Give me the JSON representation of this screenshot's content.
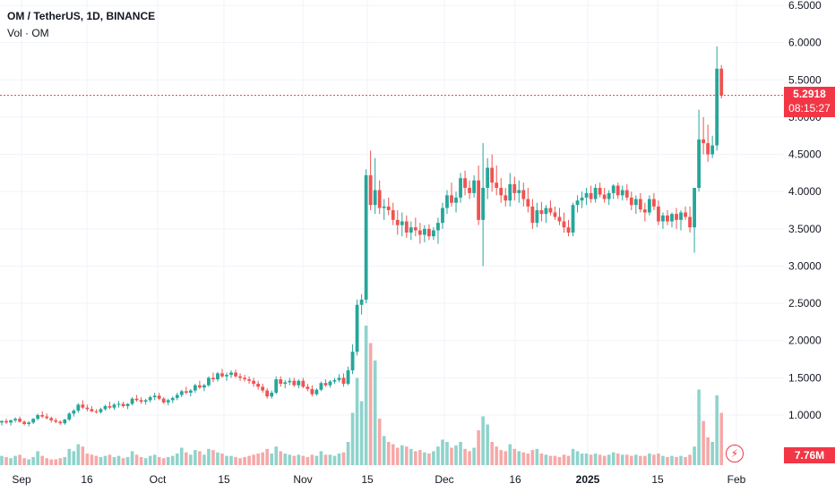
{
  "header": {
    "symbol": "OM / TetherUS, 1D, BINANCE",
    "volume_label": "Vol · OM"
  },
  "last_price": {
    "value": "5.2918",
    "countdown": "08:15:27"
  },
  "volume_badge": "7.76M",
  "colors": {
    "up": "#26a69a",
    "down": "#ef5350",
    "up_vol": "#8fd3cc",
    "down_vol": "#f5a9a8",
    "accent": "#f23645"
  },
  "icons": {
    "alert": "lightning-icon"
  },
  "chart_data": {
    "type": "candlestick",
    "y_axis": {
      "ticks": [
        "6.5000",
        "6.0000",
        "5.5000",
        "5.0000",
        "4.5000",
        "4.0000",
        "3.5000",
        "3.0000",
        "2.5000",
        "2.0000",
        "1.5000",
        "1.0000"
      ],
      "ylim": [
        0.5,
        6.5
      ]
    },
    "x_axis": {
      "ticks": [
        "Sep",
        "16",
        "Oct",
        "15",
        "Nov",
        "15",
        "Dec",
        "16",
        "2025",
        "15",
        "Feb"
      ]
    },
    "current_price_line": 5.2918,
    "candles": [
      [
        0.9,
        0.93,
        0.86,
        0.92
      ],
      [
        0.92,
        0.95,
        0.88,
        0.9
      ],
      [
        0.9,
        0.94,
        0.86,
        0.93
      ],
      [
        0.93,
        0.97,
        0.9,
        0.95
      ],
      [
        0.95,
        0.98,
        0.9,
        0.91
      ],
      [
        0.91,
        0.93,
        0.86,
        0.88
      ],
      [
        0.88,
        0.92,
        0.85,
        0.9
      ],
      [
        0.9,
        0.96,
        0.88,
        0.95
      ],
      [
        0.95,
        1.02,
        0.93,
        1.0
      ],
      [
        1.0,
        1.05,
        0.96,
        0.98
      ],
      [
        0.98,
        1.02,
        0.94,
        0.96
      ],
      [
        0.96,
        0.98,
        0.9,
        0.93
      ],
      [
        0.93,
        0.96,
        0.89,
        0.91
      ],
      [
        0.91,
        0.93,
        0.87,
        0.89
      ],
      [
        0.89,
        0.95,
        0.87,
        0.94
      ],
      [
        0.94,
        1.04,
        0.92,
        1.02
      ],
      [
        1.02,
        1.08,
        0.98,
        1.06
      ],
      [
        1.06,
        1.16,
        1.03,
        1.14
      ],
      [
        1.14,
        1.2,
        1.08,
        1.1
      ],
      [
        1.1,
        1.14,
        1.05,
        1.08
      ],
      [
        1.08,
        1.12,
        1.04,
        1.05
      ],
      [
        1.05,
        1.08,
        1.02,
        1.04
      ],
      [
        1.04,
        1.1,
        1.02,
        1.08
      ],
      [
        1.08,
        1.14,
        1.06,
        1.12
      ],
      [
        1.12,
        1.18,
        1.08,
        1.1
      ],
      [
        1.1,
        1.16,
        1.07,
        1.14
      ],
      [
        1.14,
        1.19,
        1.1,
        1.15
      ],
      [
        1.15,
        1.18,
        1.1,
        1.12
      ],
      [
        1.12,
        1.16,
        1.08,
        1.15
      ],
      [
        1.15,
        1.24,
        1.13,
        1.22
      ],
      [
        1.22,
        1.27,
        1.18,
        1.2
      ],
      [
        1.2,
        1.24,
        1.15,
        1.18
      ],
      [
        1.18,
        1.22,
        1.14,
        1.2
      ],
      [
        1.2,
        1.26,
        1.17,
        1.24
      ],
      [
        1.24,
        1.3,
        1.2,
        1.26
      ],
      [
        1.26,
        1.3,
        1.2,
        1.22
      ],
      [
        1.22,
        1.24,
        1.15,
        1.17
      ],
      [
        1.17,
        1.22,
        1.13,
        1.2
      ],
      [
        1.2,
        1.25,
        1.16,
        1.23
      ],
      [
        1.23,
        1.3,
        1.2,
        1.27
      ],
      [
        1.27,
        1.34,
        1.24,
        1.32
      ],
      [
        1.32,
        1.38,
        1.28,
        1.3
      ],
      [
        1.3,
        1.35,
        1.25,
        1.33
      ],
      [
        1.33,
        1.42,
        1.3,
        1.4
      ],
      [
        1.4,
        1.46,
        1.35,
        1.37
      ],
      [
        1.37,
        1.42,
        1.32,
        1.4
      ],
      [
        1.4,
        1.52,
        1.38,
        1.5
      ],
      [
        1.5,
        1.57,
        1.44,
        1.48
      ],
      [
        1.48,
        1.58,
        1.45,
        1.56
      ],
      [
        1.56,
        1.62,
        1.5,
        1.52
      ],
      [
        1.52,
        1.57,
        1.46,
        1.54
      ],
      [
        1.54,
        1.6,
        1.5,
        1.57
      ],
      [
        1.57,
        1.61,
        1.5,
        1.52
      ],
      [
        1.52,
        1.56,
        1.46,
        1.5
      ],
      [
        1.5,
        1.54,
        1.45,
        1.48
      ],
      [
        1.48,
        1.52,
        1.42,
        1.46
      ],
      [
        1.46,
        1.5,
        1.38,
        1.42
      ],
      [
        1.42,
        1.46,
        1.34,
        1.38
      ],
      [
        1.38,
        1.42,
        1.3,
        1.33
      ],
      [
        1.33,
        1.36,
        1.22,
        1.25
      ],
      [
        1.25,
        1.33,
        1.22,
        1.3
      ],
      [
        1.3,
        1.52,
        1.28,
        1.48
      ],
      [
        1.48,
        1.52,
        1.38,
        1.42
      ],
      [
        1.42,
        1.47,
        1.36,
        1.44
      ],
      [
        1.44,
        1.5,
        1.4,
        1.46
      ],
      [
        1.46,
        1.5,
        1.38,
        1.4
      ],
      [
        1.4,
        1.48,
        1.36,
        1.46
      ],
      [
        1.46,
        1.5,
        1.36,
        1.38
      ],
      [
        1.38,
        1.42,
        1.32,
        1.35
      ],
      [
        1.35,
        1.4,
        1.25,
        1.28
      ],
      [
        1.28,
        1.36,
        1.26,
        1.34
      ],
      [
        1.34,
        1.45,
        1.32,
        1.43
      ],
      [
        1.43,
        1.48,
        1.38,
        1.4
      ],
      [
        1.4,
        1.47,
        1.37,
        1.45
      ],
      [
        1.45,
        1.5,
        1.42,
        1.47
      ],
      [
        1.47,
        1.55,
        1.44,
        1.5
      ],
      [
        1.5,
        1.56,
        1.38,
        1.42
      ],
      [
        1.42,
        1.65,
        1.4,
        1.6
      ],
      [
        1.6,
        1.95,
        1.55,
        1.85
      ],
      [
        1.85,
        2.55,
        1.8,
        2.48
      ],
      [
        2.48,
        2.62,
        2.35,
        2.55
      ],
      [
        2.55,
        4.3,
        2.5,
        4.22
      ],
      [
        4.22,
        4.55,
        3.75,
        3.82
      ],
      [
        3.82,
        4.45,
        3.7,
        4.02
      ],
      [
        4.02,
        4.15,
        3.7,
        3.78
      ],
      [
        3.78,
        3.9,
        3.62,
        3.8
      ],
      [
        3.8,
        3.92,
        3.68,
        3.75
      ],
      [
        3.75,
        3.85,
        3.55,
        3.62
      ],
      [
        3.62,
        3.75,
        3.42,
        3.55
      ],
      [
        3.55,
        3.72,
        3.4,
        3.6
      ],
      [
        3.6,
        3.68,
        3.38,
        3.45
      ],
      [
        3.45,
        3.6,
        3.35,
        3.52
      ],
      [
        3.52,
        3.65,
        3.4,
        3.48
      ],
      [
        3.48,
        3.58,
        3.3,
        3.42
      ],
      [
        3.42,
        3.55,
        3.32,
        3.5
      ],
      [
        3.5,
        3.56,
        3.35,
        3.4
      ],
      [
        3.4,
        3.52,
        3.35,
        3.48
      ],
      [
        3.48,
        3.65,
        3.3,
        3.58
      ],
      [
        3.58,
        3.85,
        3.5,
        3.78
      ],
      [
        3.78,
        4.02,
        3.7,
        3.95
      ],
      [
        3.95,
        4.12,
        3.8,
        3.85
      ],
      [
        3.85,
        4.0,
        3.72,
        3.92
      ],
      [
        3.92,
        4.25,
        3.85,
        4.18
      ],
      [
        4.18,
        4.28,
        3.95,
        4.05
      ],
      [
        4.05,
        4.15,
        3.9,
        3.98
      ],
      [
        3.98,
        4.22,
        3.92,
        4.15
      ],
      [
        4.15,
        4.35,
        3.55,
        3.62
      ],
      [
        3.62,
        4.65,
        3.0,
        4.05
      ],
      [
        4.05,
        4.45,
        3.9,
        4.32
      ],
      [
        4.32,
        4.5,
        4.0,
        4.12
      ],
      [
        4.12,
        4.35,
        3.95,
        4.05
      ],
      [
        4.05,
        4.18,
        3.85,
        3.95
      ],
      [
        3.95,
        4.05,
        3.8,
        3.88
      ],
      [
        3.88,
        4.25,
        3.8,
        4.1
      ],
      [
        4.1,
        4.2,
        3.88,
        3.98
      ],
      [
        3.98,
        4.15,
        3.85,
        4.02
      ],
      [
        4.02,
        4.12,
        3.8,
        3.9
      ],
      [
        3.9,
        4.05,
        3.72,
        3.8
      ],
      [
        3.8,
        3.9,
        3.5,
        3.58
      ],
      [
        3.58,
        3.85,
        3.52,
        3.75
      ],
      [
        3.75,
        3.86,
        3.6,
        3.7
      ],
      [
        3.7,
        3.82,
        3.58,
        3.78
      ],
      [
        3.78,
        3.88,
        3.68,
        3.72
      ],
      [
        3.72,
        3.8,
        3.62,
        3.66
      ],
      [
        3.66,
        3.78,
        3.55,
        3.6
      ],
      [
        3.6,
        3.72,
        3.45,
        3.52
      ],
      [
        3.52,
        3.62,
        3.4,
        3.45
      ],
      [
        3.45,
        3.85,
        3.4,
        3.82
      ],
      [
        3.82,
        3.95,
        3.72,
        3.88
      ],
      [
        3.88,
        4.0,
        3.78,
        3.92
      ],
      [
        3.92,
        4.05,
        3.82,
        3.98
      ],
      [
        3.98,
        4.08,
        3.85,
        3.9
      ],
      [
        3.9,
        4.1,
        3.85,
        4.05
      ],
      [
        4.05,
        4.12,
        3.92,
        3.96
      ],
      [
        3.96,
        4.05,
        3.85,
        3.9
      ],
      [
        3.9,
        4.02,
        3.82,
        3.98
      ],
      [
        3.98,
        4.1,
        3.9,
        4.08
      ],
      [
        4.08,
        4.12,
        3.9,
        3.95
      ],
      [
        3.95,
        4.08,
        3.88,
        4.02
      ],
      [
        4.02,
        4.1,
        3.88,
        3.92
      ],
      [
        3.92,
        4.0,
        3.75,
        3.82
      ],
      [
        3.82,
        3.95,
        3.7,
        3.9
      ],
      [
        3.9,
        3.98,
        3.72,
        3.76
      ],
      [
        3.76,
        3.85,
        3.6,
        3.72
      ],
      [
        3.72,
        3.95,
        3.68,
        3.9
      ],
      [
        3.9,
        3.98,
        3.75,
        3.8
      ],
      [
        3.8,
        3.88,
        3.55,
        3.6
      ],
      [
        3.6,
        3.72,
        3.5,
        3.68
      ],
      [
        3.68,
        3.75,
        3.55,
        3.6
      ],
      [
        3.6,
        3.72,
        3.52,
        3.7
      ],
      [
        3.7,
        3.78,
        3.5,
        3.62
      ],
      [
        3.62,
        3.75,
        3.48,
        3.72
      ],
      [
        3.72,
        3.8,
        3.62,
        3.66
      ],
      [
        3.66,
        3.8,
        3.45,
        3.52
      ],
      [
        3.52,
        4.05,
        3.18,
        4.05
      ],
      [
        4.05,
        5.1,
        4.0,
        4.7
      ],
      [
        4.7,
        5.0,
        4.5,
        4.65
      ],
      [
        4.65,
        4.9,
        4.4,
        4.5
      ],
      [
        4.5,
        4.75,
        4.45,
        4.62
      ],
      [
        4.62,
        5.95,
        4.55,
        5.65
      ],
      [
        5.65,
        5.7,
        5.25,
        5.29
      ]
    ],
    "volumes": [
      0.08,
      0.07,
      0.06,
      0.08,
      0.09,
      0.06,
      0.05,
      0.07,
      0.12,
      0.08,
      0.06,
      0.05,
      0.05,
      0.06,
      0.07,
      0.14,
      0.12,
      0.18,
      0.16,
      0.1,
      0.09,
      0.08,
      0.07,
      0.08,
      0.09,
      0.07,
      0.08,
      0.06,
      0.07,
      0.12,
      0.09,
      0.07,
      0.06,
      0.08,
      0.09,
      0.07,
      0.06,
      0.07,
      0.08,
      0.1,
      0.15,
      0.11,
      0.09,
      0.13,
      0.12,
      0.09,
      0.14,
      0.13,
      0.11,
      0.1,
      0.08,
      0.08,
      0.07,
      0.06,
      0.07,
      0.08,
      0.09,
      0.1,
      0.11,
      0.14,
      0.1,
      0.16,
      0.12,
      0.1,
      0.09,
      0.08,
      0.09,
      0.08,
      0.07,
      0.09,
      0.08,
      0.12,
      0.09,
      0.09,
      0.08,
      0.1,
      0.11,
      0.2,
      0.45,
      0.75,
      0.55,
      1.2,
      1.05,
      0.9,
      0.4,
      0.25,
      0.2,
      0.18,
      0.15,
      0.17,
      0.16,
      0.14,
      0.12,
      0.13,
      0.11,
      0.1,
      0.12,
      0.16,
      0.22,
      0.2,
      0.15,
      0.17,
      0.2,
      0.14,
      0.12,
      0.15,
      0.3,
      0.42,
      0.35,
      0.2,
      0.16,
      0.13,
      0.12,
      0.18,
      0.14,
      0.12,
      0.11,
      0.1,
      0.13,
      0.14,
      0.1,
      0.09,
      0.08,
      0.08,
      0.07,
      0.09,
      0.08,
      0.14,
      0.12,
      0.1,
      0.1,
      0.09,
      0.1,
      0.09,
      0.08,
      0.09,
      0.11,
      0.1,
      0.09,
      0.09,
      0.08,
      0.09,
      0.08,
      0.08,
      0.1,
      0.09,
      0.1,
      0.08,
      0.07,
      0.08,
      0.07,
      0.08,
      0.07,
      0.09,
      0.16,
      0.65,
      0.38,
      0.24,
      0.2,
      0.6,
      0.45
    ]
  }
}
